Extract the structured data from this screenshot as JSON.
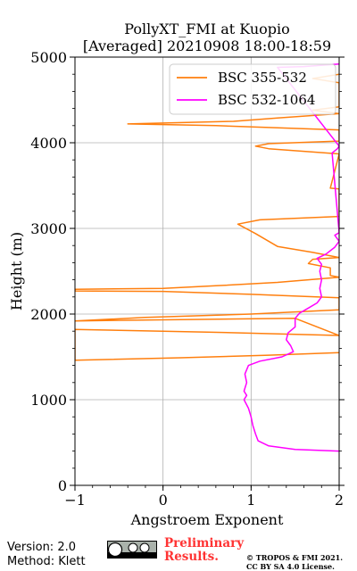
{
  "chart_data": {
    "type": "line",
    "title_line1": "PollyXT_FMI at Kuopio",
    "title_line2": "[Averaged] 20210908 18:00-18:59",
    "xlabel": "Angstroem Exponent",
    "ylabel": "Height (m)",
    "xlim": [
      -1,
      2
    ],
    "ylim": [
      0,
      5000
    ],
    "xticks": [
      -1,
      0,
      1,
      2
    ],
    "yticks": [
      0,
      1000,
      2000,
      3000,
      4000,
      5000
    ],
    "grid": true,
    "legend_position": "top-right",
    "series": [
      {
        "name": "BSC 355-532",
        "color": "#ff7f0e",
        "points": [
          [
            2.0,
            1550
          ],
          [
            1.2,
            1520
          ],
          [
            0.2,
            1490
          ],
          [
            -1.0,
            1460
          ],
          [
            -1.0,
            1460
          ],
          [
            -1.0,
            1820
          ],
          [
            0.5,
            1790
          ],
          [
            2.0,
            1750
          ],
          [
            2.0,
            1750
          ],
          [
            1.5,
            1950
          ],
          [
            0.2,
            1935
          ],
          [
            -1.0,
            1920
          ],
          [
            -1.0,
            1920
          ],
          [
            -0.2,
            1960
          ],
          [
            1.0,
            2000
          ],
          [
            2.0,
            2050
          ],
          [
            2.0,
            2050
          ],
          [
            2.0,
            2190
          ],
          [
            1.0,
            2230
          ],
          [
            0.0,
            2265
          ],
          [
            -1.0,
            2270
          ],
          [
            -1.0,
            2290
          ],
          [
            0.0,
            2300
          ],
          [
            0.6,
            2330
          ],
          [
            1.3,
            2370
          ],
          [
            2.0,
            2430
          ],
          [
            1.9,
            2450
          ],
          [
            1.9,
            2540
          ],
          [
            1.65,
            2590
          ],
          [
            1.7,
            2640
          ],
          [
            2.0,
            2660
          ],
          [
            1.7,
            2720
          ],
          [
            1.3,
            2790
          ],
          [
            1.05,
            2940
          ],
          [
            0.85,
            3050
          ],
          [
            1.1,
            3100
          ],
          [
            2.0,
            3140
          ],
          [
            2.0,
            3460
          ],
          [
            1.9,
            3470
          ],
          [
            2.0,
            3870
          ],
          [
            1.2,
            3930
          ],
          [
            1.05,
            3960
          ],
          [
            1.2,
            3990
          ],
          [
            2.0,
            4020
          ],
          [
            2.0,
            4150
          ],
          [
            0.6,
            4200
          ],
          [
            -0.4,
            4220
          ],
          [
            0.8,
            4250
          ],
          [
            1.3,
            4290
          ],
          [
            2.0,
            4340
          ],
          [
            1.7,
            4380
          ],
          [
            2.0,
            4420
          ],
          [
            2.0,
            4700
          ],
          [
            1.7,
            4750
          ],
          [
            2.0,
            4800
          ]
        ]
      },
      {
        "name": "BSC 532-1064",
        "color": "#ff00ff",
        "points": [
          [
            2.0,
            400
          ],
          [
            1.5,
            420
          ],
          [
            1.2,
            460
          ],
          [
            1.08,
            520
          ],
          [
            1.05,
            600
          ],
          [
            1.02,
            700
          ],
          [
            1.0,
            800
          ],
          [
            0.97,
            900
          ],
          [
            0.92,
            1000
          ],
          [
            0.95,
            1050
          ],
          [
            0.92,
            1100
          ],
          [
            0.95,
            1200
          ],
          [
            0.93,
            1300
          ],
          [
            0.97,
            1400
          ],
          [
            1.1,
            1450
          ],
          [
            1.35,
            1500
          ],
          [
            1.48,
            1560
          ],
          [
            1.45,
            1630
          ],
          [
            1.4,
            1700
          ],
          [
            1.42,
            1780
          ],
          [
            1.5,
            1850
          ],
          [
            1.5,
            1950
          ],
          [
            1.55,
            2010
          ],
          [
            1.65,
            2070
          ],
          [
            1.75,
            2130
          ],
          [
            1.8,
            2200
          ],
          [
            1.78,
            2300
          ],
          [
            1.8,
            2400
          ],
          [
            1.78,
            2500
          ],
          [
            1.8,
            2580
          ],
          [
            1.75,
            2650
          ],
          [
            1.85,
            2700
          ],
          [
            1.95,
            2780
          ],
          [
            2.0,
            2850
          ],
          [
            1.95,
            2920
          ],
          [
            2.0,
            2950
          ],
          [
            1.92,
            3880
          ],
          [
            1.98,
            3930
          ],
          [
            2.0,
            3960
          ],
          [
            1.3,
            4880
          ],
          [
            1.6,
            4890
          ],
          [
            2.0,
            4920
          ]
        ]
      }
    ]
  },
  "footer": {
    "version": "Version: 2.0",
    "method": "Method: Klett",
    "preliminary_line1": "Preliminary",
    "preliminary_line2": "Results.",
    "copyright_line1": "© TROPOS & FMI 2021.",
    "copyright_line2": "CC BY SA 4.0 License."
  }
}
